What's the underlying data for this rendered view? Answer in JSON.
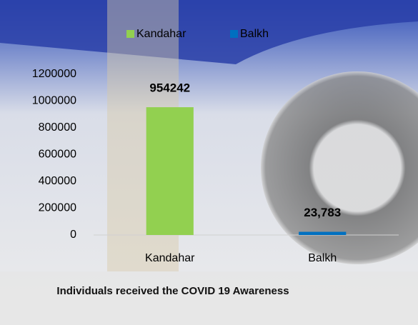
{
  "chart_data": {
    "type": "bar",
    "title": "Individuals received the COVID 19 Awareness",
    "categories": [
      "Kandahar",
      "Balkh"
    ],
    "values": [
      954242,
      23783
    ],
    "value_labels": [
      "954242",
      "23,783"
    ],
    "colors": [
      "#92d050",
      "#0070c0"
    ],
    "ylim": [
      0,
      1200000
    ],
    "yticks": [
      0,
      200000,
      400000,
      600000,
      800000,
      1000000,
      1200000
    ],
    "legend": "top"
  }
}
